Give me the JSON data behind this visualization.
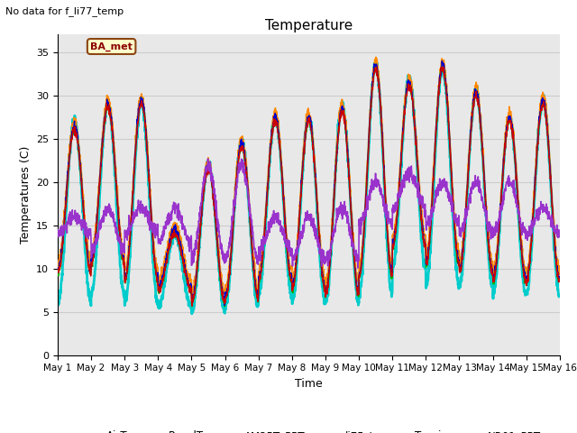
{
  "title": "Temperature",
  "ylabel": "Temperatures (C)",
  "xlabel": "Time",
  "note": "No data for f_li77_temp",
  "legend_label": "BA_met",
  "ylim": [
    0,
    37
  ],
  "yticks": [
    0,
    5,
    10,
    15,
    20,
    25,
    30,
    35
  ],
  "series": {
    "AirT": {
      "color": "#cc0000",
      "lw": 1.0
    },
    "PanelT": {
      "color": "#0000cc",
      "lw": 1.0
    },
    "AM25T_PRT": {
      "color": "#00bb00",
      "lw": 1.0
    },
    "li75_t": {
      "color": "#ff8800",
      "lw": 1.2
    },
    "Tsonic": {
      "color": "#9933cc",
      "lw": 1.2
    },
    "NR01_PRT": {
      "color": "#00cccc",
      "lw": 2.0
    }
  },
  "grid_color": "#cccccc",
  "plot_bg": "#e8e8e8",
  "day_mins": [
    9.5,
    10.5,
    8.5,
    7.5,
    6.0,
    6.5,
    8.5,
    7.5,
    7.0,
    9.0,
    12.5,
    10.5,
    9.5,
    8.5,
    8.5
  ],
  "day_maxs": [
    26,
    28.5,
    29,
    14,
    21.5,
    24,
    27,
    27,
    28,
    33,
    31,
    33,
    30,
    27,
    29
  ],
  "tsonic_mins": [
    14,
    12,
    14,
    13,
    11,
    11,
    12,
    11,
    11,
    15,
    17,
    15,
    14,
    14,
    14
  ],
  "tsonic_maxs": [
    16,
    17,
    17,
    17,
    22,
    22,
    16,
    16,
    17,
    20,
    21,
    20,
    20,
    20,
    17
  ],
  "nr01_mins": [
    6,
    7,
    6,
    5.5,
    5,
    5.5,
    7,
    6,
    6,
    7,
    10,
    8,
    8,
    7,
    7
  ],
  "nr01_maxs": [
    27,
    29,
    29,
    14,
    22,
    24.5,
    27.5,
    27.5,
    29,
    33.5,
    32,
    33,
    30.5,
    27.5,
    29.5
  ]
}
